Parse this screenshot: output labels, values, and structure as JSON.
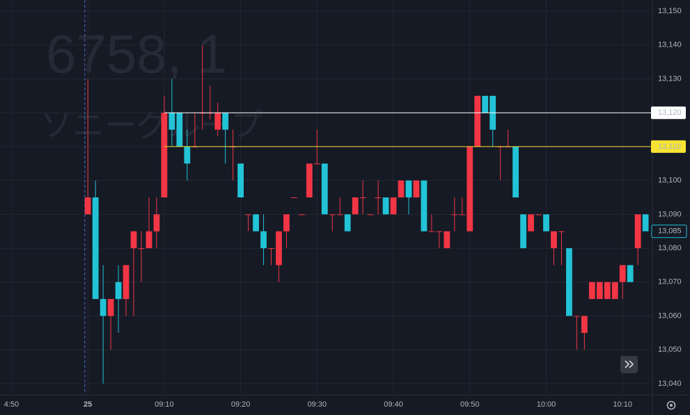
{
  "chart_data": {
    "type": "candlestick",
    "title": "6758, 1",
    "subtitle": "ソニーグループ",
    "x": [
      0,
      1,
      2,
      3,
      4,
      5,
      6,
      7,
      8,
      9,
      10,
      11,
      12,
      13,
      14,
      15,
      16,
      17,
      18,
      19,
      20,
      21,
      22,
      23,
      24,
      25,
      26,
      27,
      28,
      29,
      30,
      31,
      32,
      33,
      34,
      35,
      36,
      37,
      38,
      39,
      40,
      41,
      42,
      43,
      44,
      45,
      46,
      47,
      48,
      49,
      50,
      51,
      52,
      53,
      54,
      55,
      56,
      57,
      58,
      59,
      60,
      61,
      62,
      63,
      64,
      65,
      66,
      67,
      68,
      69,
      70,
      71,
      72,
      73
    ],
    "open": [
      13090,
      13095,
      13065,
      13060,
      13070,
      13065,
      13080,
      13080,
      13080,
      13085,
      13095,
      13120,
      13120,
      13110,
      13110,
      13120,
      13120,
      13115,
      13120,
      13110,
      13105,
      13090,
      13090,
      13085,
      13080,
      13075,
      13085,
      13095,
      13090,
      13095,
      13105,
      13105,
      13090,
      13090,
      13090,
      13090,
      13095,
      13090,
      13095,
      13095,
      13090,
      13095,
      13100,
      13095,
      13100,
      13085,
      13085,
      13080,
      13090,
      13090,
      13085,
      13110,
      13125,
      13125,
      13110,
      13110,
      13110,
      13090,
      13085,
      13090,
      13090,
      13080,
      13085,
      13080,
      13060,
      13055,
      13065,
      13065,
      13065,
      13065,
      13070,
      13075,
      13080,
      13090
    ],
    "high": [
      13130,
      13100,
      13075,
      13065,
      13075,
      13075,
      13085,
      13085,
      13095,
      13095,
      13125,
      13130,
      13120,
      13115,
      13120,
      13140,
      13128,
      13123,
      13120,
      13115,
      13105,
      13090,
      13090,
      13090,
      13080,
      13085,
      13090,
      13095,
      13090,
      13105,
      13115,
      13105,
      13090,
      13095,
      13090,
      13095,
      13100,
      13090,
      13100,
      13095,
      13095,
      13100,
      13100,
      13100,
      13100,
      13090,
      13085,
      13085,
      13095,
      13095,
      13110,
      13125,
      13125,
      13125,
      13110,
      13115,
      13110,
      13090,
      13090,
      13090,
      13090,
      13085,
      13085,
      13080,
      13060,
      13060,
      13070,
      13070,
      13070,
      13070,
      13075,
      13075,
      13090,
      13090
    ],
    "low": [
      13090,
      13065,
      13040,
      13050,
      13055,
      13060,
      13060,
      13070,
      13080,
      13080,
      13095,
      13110,
      13110,
      13100,
      13110,
      13115,
      13118,
      13113,
      13105,
      13100,
      13095,
      13085,
      13085,
      13075,
      13075,
      13070,
      13080,
      13095,
      13090,
      13095,
      13105,
      13090,
      13085,
      13090,
      13085,
      13090,
      13090,
      13090,
      13090,
      13090,
      13090,
      13095,
      13090,
      13095,
      13085,
      13085,
      13080,
      13080,
      13085,
      13090,
      13085,
      13110,
      13120,
      13110,
      13100,
      13110,
      13095,
      13080,
      13085,
      13090,
      13085,
      13075,
      13075,
      13060,
      13050,
      13050,
      13065,
      13065,
      13065,
      13065,
      13065,
      13070,
      13075,
      13085
    ],
    "close": [
      13095,
      13065,
      13060,
      13065,
      13065,
      13075,
      13085,
      13080,
      13085,
      13090,
      13120,
      13115,
      13110,
      13105,
      13110,
      13120,
      13120,
      13120,
      13115,
      13110,
      13095,
      13090,
      13085,
      13080,
      13080,
      13085,
      13090,
      13095,
      13090,
      13105,
      13105,
      13090,
      13090,
      13090,
      13085,
      13095,
      13095,
      13090,
      13095,
      13090,
      13095,
      13100,
      13095,
      13100,
      13085,
      13085,
      13085,
      13085,
      13090,
      13090,
      13110,
      13125,
      13120,
      13115,
      13110,
      13110,
      13095,
      13080,
      13090,
      13090,
      13085,
      13085,
      13085,
      13060,
      13060,
      13060,
      13070,
      13070,
      13070,
      13070,
      13075,
      13070,
      13090,
      13085
    ],
    "up_color": "#f23645",
    "down_color": "#22c3d6",
    "xlim": [
      -11.5,
      73.9
    ],
    "xticks": [
      {
        "value": -10,
        "label": "4:50"
      },
      {
        "value": 0,
        "label": "25"
      },
      {
        "value": 10,
        "label": "09:10"
      },
      {
        "value": 20,
        "label": "09:20"
      },
      {
        "value": 30,
        "label": "09:30"
      },
      {
        "value": 40,
        "label": "09:40"
      },
      {
        "value": 50,
        "label": "09:50"
      },
      {
        "value": 60,
        "label": "10:00"
      },
      {
        "value": 70,
        "label": "10:10"
      }
    ],
    "ylim": [
      13036.7,
      13153.3
    ],
    "yticks": [
      {
        "value": 13040,
        "label": "13,040"
      },
      {
        "value": 13050,
        "label": "13,050"
      },
      {
        "value": 13060,
        "label": "13,060"
      },
      {
        "value": 13070,
        "label": "13,070"
      },
      {
        "value": 13080,
        "label": "13,080"
      },
      {
        "value": 13090,
        "label": "13,090"
      },
      {
        "value": 13100,
        "label": "13,100"
      },
      {
        "value": 13110,
        "label": "13,110"
      },
      {
        "value": 13120,
        "label": "13,120"
      },
      {
        "value": 13130,
        "label": "13,130"
      },
      {
        "value": 13140,
        "label": "13,140"
      },
      {
        "value": 13150,
        "label": "13,150"
      }
    ],
    "grid": true,
    "session_break": 0,
    "lines": [
      {
        "value": 13120,
        "label": "13,120",
        "color": "#ffffff"
      },
      {
        "value": 13110,
        "label": "13,110",
        "color": "#f7e332"
      }
    ],
    "last_price": {
      "value": 13085,
      "label": "13,085",
      "color": "#22c3d6"
    }
  }
}
